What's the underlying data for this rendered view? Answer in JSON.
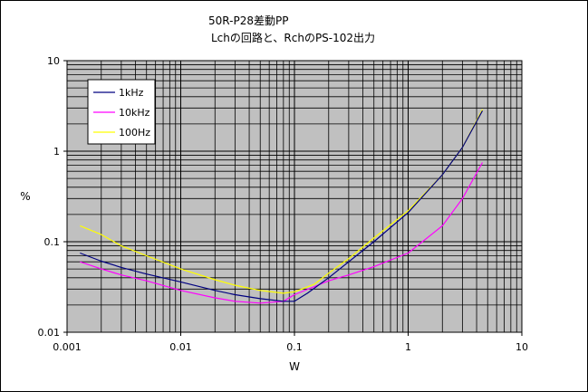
{
  "chart_data": {
    "type": "line",
    "title_lines": [
      "50R-P28差動PP",
      "Lchの回路と、RchのPS-102出力"
    ],
    "xlabel": "W",
    "ylabel": "%",
    "x_scale": "log",
    "y_scale": "log",
    "xlim": [
      0.001,
      10
    ],
    "ylim": [
      0.01,
      10
    ],
    "x_ticks": [
      "0.001",
      "0.01",
      "0.1",
      "1",
      "10"
    ],
    "y_ticks": [
      "0.01",
      "0.1",
      "1",
      "10"
    ],
    "grid": true,
    "legend_position": "top-left",
    "plot_background": "#c0c0c0",
    "series": [
      {
        "name": "1kHz",
        "color": "#000080",
        "points": [
          [
            0.0013,
            0.075
          ],
          [
            0.002,
            0.061
          ],
          [
            0.003,
            0.052
          ],
          [
            0.005,
            0.044
          ],
          [
            0.01,
            0.036
          ],
          [
            0.02,
            0.029
          ],
          [
            0.03,
            0.026
          ],
          [
            0.05,
            0.0235
          ],
          [
            0.08,
            0.022
          ],
          [
            0.1,
            0.022
          ],
          [
            0.13,
            0.027
          ],
          [
            0.2,
            0.04
          ],
          [
            0.3,
            0.06
          ],
          [
            0.5,
            0.1
          ],
          [
            1,
            0.21
          ],
          [
            2,
            0.55
          ],
          [
            3,
            1.1
          ],
          [
            4.5,
            2.8
          ]
        ]
      },
      {
        "name": "10kHz",
        "color": "#ff00ff",
        "points": [
          [
            0.0013,
            0.06
          ],
          [
            0.002,
            0.05
          ],
          [
            0.003,
            0.043
          ],
          [
            0.005,
            0.037
          ],
          [
            0.01,
            0.029
          ],
          [
            0.02,
            0.024
          ],
          [
            0.03,
            0.022
          ],
          [
            0.05,
            0.021
          ],
          [
            0.08,
            0.022
          ],
          [
            0.1,
            0.026
          ],
          [
            0.15,
            0.032
          ],
          [
            0.2,
            0.037
          ],
          [
            0.3,
            0.043
          ],
          [
            0.5,
            0.053
          ],
          [
            1,
            0.075
          ],
          [
            2,
            0.15
          ],
          [
            3,
            0.3
          ],
          [
            4.5,
            0.75
          ]
        ]
      },
      {
        "name": "100Hz",
        "color": "#ffff00",
        "points": [
          [
            0.0013,
            0.15
          ],
          [
            0.002,
            0.12
          ],
          [
            0.003,
            0.09
          ],
          [
            0.005,
            0.07
          ],
          [
            0.01,
            0.05
          ],
          [
            0.02,
            0.038
          ],
          [
            0.03,
            0.033
          ],
          [
            0.05,
            0.029
          ],
          [
            0.08,
            0.027
          ],
          [
            0.1,
            0.028
          ],
          [
            0.15,
            0.034
          ],
          [
            0.2,
            0.045
          ],
          [
            0.3,
            0.065
          ],
          [
            0.5,
            0.11
          ],
          [
            1,
            0.22
          ],
          [
            2,
            0.55
          ],
          [
            3,
            1.1
          ],
          [
            4.5,
            2.9
          ]
        ]
      }
    ]
  }
}
